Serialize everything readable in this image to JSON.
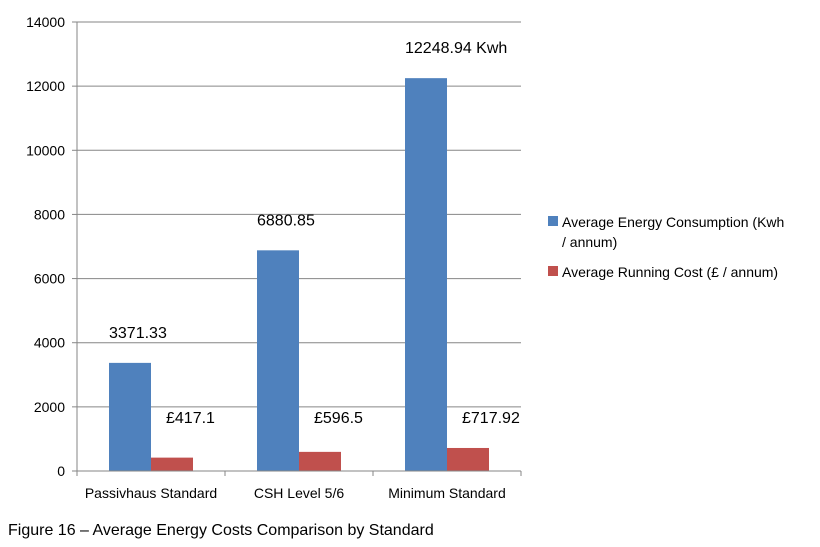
{
  "chart_data": {
    "type": "bar",
    "categories": [
      "Passivhaus Standard",
      "CSH Level 5/6",
      "Minimum Standard"
    ],
    "series": [
      {
        "name": "Average Energy Consumption (Kwh / annum)",
        "legend_lines": [
          "Average Energy Consumption (Kwh",
          "/ annum)"
        ],
        "color": "#4F81BD",
        "values": [
          3371.33,
          6880.85,
          12248.94
        ],
        "data_labels": [
          "3371.33",
          "6880.85",
          "12248.94 Kwh"
        ]
      },
      {
        "name": "Average Running Cost (£ / annum)",
        "legend_lines": [
          "Average Running Cost (£ / annum)"
        ],
        "color": "#C0504D",
        "values": [
          417.1,
          596.5,
          717.92
        ],
        "data_labels": [
          "£417.1",
          "£596.5",
          "£717.92"
        ]
      }
    ],
    "ylim": [
      0,
      14000
    ],
    "yticks": [
      0,
      2000,
      4000,
      6000,
      8000,
      10000,
      12000,
      14000
    ],
    "grid": true,
    "legend_position": "right",
    "xlabel": "",
    "ylabel": ""
  },
  "caption": "Figure 16 – Average Energy Costs Comparison by Standard"
}
